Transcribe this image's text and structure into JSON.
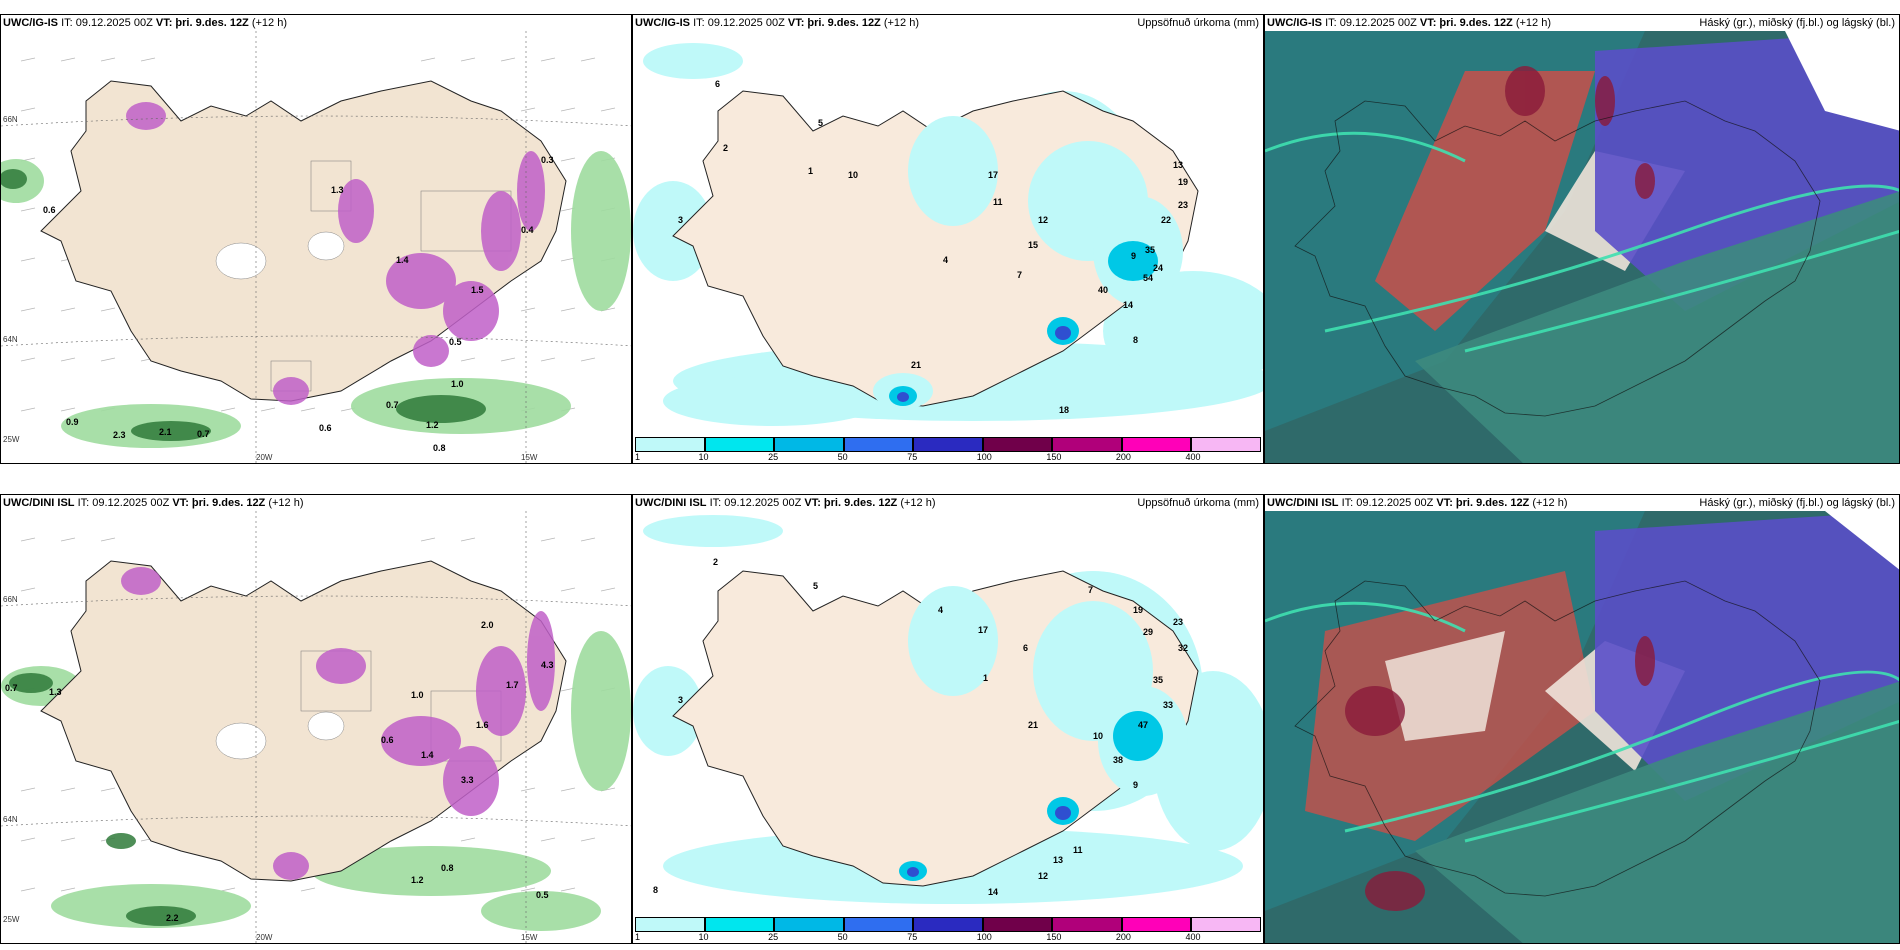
{
  "header_common": {
    "it_label": "IT: 09.12.2025 00Z",
    "vt_label": "VT: þri. 9.des. 12Z",
    "lead": "(+12 h)"
  },
  "panels": [
    {
      "model": "UWC/IG-IS",
      "right_title": ""
    },
    {
      "model": "UWC/IG-IS",
      "right_title": "Uppsöfnuð úrkoma (mm)"
    },
    {
      "model": "UWC/IG-IS",
      "right_title": "Háský (gr.), miðský (fj.bl.) og lágský (bl.)"
    },
    {
      "model": "UWC/DINI ISL",
      "right_title": ""
    },
    {
      "model": "UWC/DINI ISL",
      "right_title": "Uppsöfnuð úrkoma (mm)"
    },
    {
      "model": "UWC/DINI ISL",
      "right_title": "Háský (gr.), miðský (fj.bl.) og lágský (bl.)"
    }
  ],
  "axis_labels": {
    "lat66": "66N",
    "lat64": "64N",
    "lon25": "25W",
    "lon20": "20W",
    "lon15": "15W"
  },
  "colorbar": {
    "ticks": [
      "1",
      "10",
      "25",
      "50",
      "75",
      "100",
      "150",
      "200",
      "400"
    ],
    "colors": [
      "#bff9f9",
      "#00e6ee",
      "#00b8e6",
      "#2f6ef0",
      "#2a2ac0",
      "#70004a",
      "#b0007a",
      "#ff00b8",
      "#f7b7f4"
    ]
  },
  "labels": {
    "p1": [
      "0.6",
      "0.7",
      "0.9",
      "2.3",
      "2.1",
      "0.7",
      "0.6",
      "1.2",
      "0.8",
      "1.0",
      "0.5",
      "1.3",
      "1.4",
      "0.4",
      "1.5",
      "0.3"
    ],
    "p2": [
      "2",
      "3",
      "5",
      "6",
      "10",
      "12",
      "17",
      "15",
      "13",
      "19",
      "23",
      "22",
      "35",
      "54",
      "40",
      "14",
      "8",
      "18",
      "21",
      "7",
      "4",
      "1",
      "9",
      "11",
      "24"
    ],
    "p4": [
      "0.7",
      "1.3",
      "2.2",
      "0.5",
      "0.8",
      "1.2",
      "1.0",
      "1.6",
      "2.0",
      "3.3",
      "0.6",
      "1.4",
      "1.7",
      "4.3"
    ],
    "p5": [
      "2",
      "3",
      "5",
      "4",
      "6",
      "7",
      "9",
      "17",
      "19",
      "29",
      "23",
      "32",
      "35",
      "33",
      "47",
      "38",
      "21",
      "13",
      "12",
      "11",
      "14",
      "10",
      "8",
      "1"
    ]
  },
  "colors": {
    "land": "#f2e4d2",
    "sea": "#ffffff",
    "precip_light": "#bff9f9",
    "snow": "#c040c0",
    "rain_green": "#72c472",
    "cloud_high": "#3a8a7a",
    "cloud_mid": "#6a5acd",
    "cloud_low": "#d04a4a"
  }
}
